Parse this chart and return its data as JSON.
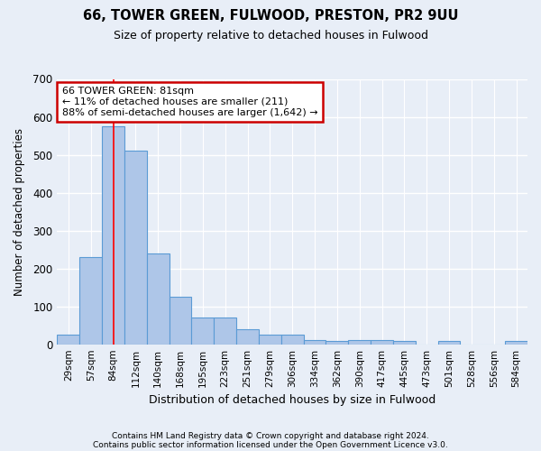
{
  "title1": "66, TOWER GREEN, FULWOOD, PRESTON, PR2 9UU",
  "title2": "Size of property relative to detached houses in Fulwood",
  "xlabel": "Distribution of detached houses by size in Fulwood",
  "ylabel": "Number of detached properties",
  "categories": [
    "29sqm",
    "57sqm",
    "84sqm",
    "112sqm",
    "140sqm",
    "168sqm",
    "195sqm",
    "223sqm",
    "251sqm",
    "279sqm",
    "306sqm",
    "334sqm",
    "362sqm",
    "390sqm",
    "417sqm",
    "445sqm",
    "473sqm",
    "501sqm",
    "528sqm",
    "556sqm",
    "584sqm"
  ],
  "values": [
    25,
    230,
    575,
    510,
    240,
    125,
    70,
    70,
    40,
    25,
    25,
    12,
    8,
    12,
    12,
    8,
    0,
    8,
    0,
    0,
    8
  ],
  "bar_color": "#aec6e8",
  "bar_edge_color": "#5b9bd5",
  "background_color": "#e8eef7",
  "grid_color": "#ffffff",
  "redline_x": 2.0,
  "annotation_text": "66 TOWER GREEN: 81sqm\n← 11% of detached houses are smaller (211)\n88% of semi-detached houses are larger (1,642) →",
  "annotation_box_color": "#ffffff",
  "annotation_box_edge": "#cc0000",
  "footnote1": "Contains HM Land Registry data © Crown copyright and database right 2024.",
  "footnote2": "Contains public sector information licensed under the Open Government Licence v3.0.",
  "ylim": [
    0,
    700
  ],
  "yticks": [
    0,
    100,
    200,
    300,
    400,
    500,
    600,
    700
  ]
}
